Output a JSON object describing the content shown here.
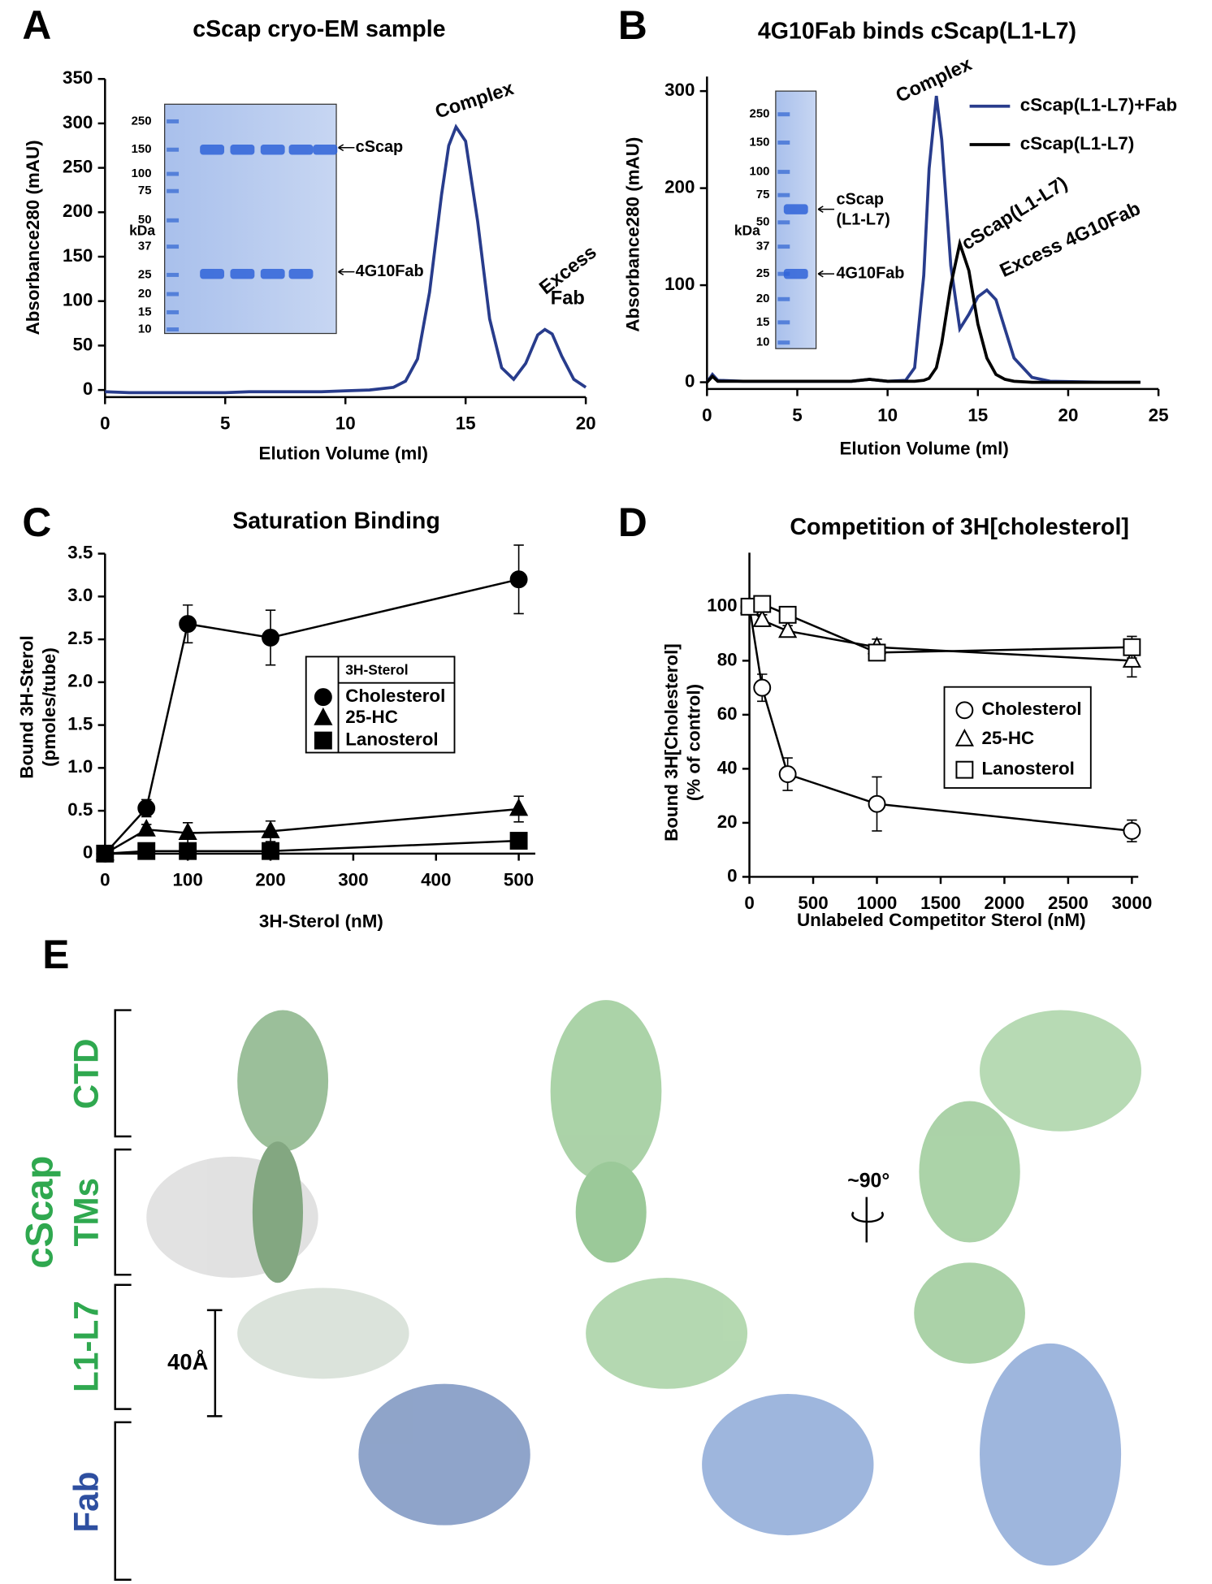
{
  "chart_data": [
    {
      "type": "line",
      "panel": "A",
      "title": "cScap cryo-EM sample",
      "x_label": "Elution Volume (ml)",
      "y_label": [
        "Absorbance280 (mAU)"
      ],
      "xlim": [
        0,
        20
      ],
      "ylim": [
        -8,
        350
      ],
      "xticks": [
        0,
        5,
        10,
        15,
        20
      ],
      "yticks": [
        0,
        50,
        100,
        150,
        200,
        250,
        300,
        350
      ],
      "x": [
        0,
        1,
        2,
        3,
        4,
        5,
        6,
        7,
        8,
        9,
        10,
        11,
        12,
        12.5,
        13,
        13.5,
        14,
        14.3,
        14.6,
        15,
        15.5,
        16,
        16.5,
        17,
        17.5,
        18,
        18.3,
        18.6,
        19,
        19.5,
        20
      ],
      "series": [
        {
          "color": "#283c8c",
          "values": [
            -2,
            -3,
            -3,
            -3,
            -3,
            -3,
            -2,
            -2,
            -2,
            -2,
            -1,
            0,
            3,
            10,
            35,
            110,
            220,
            275,
            296,
            280,
            190,
            80,
            25,
            12,
            30,
            62,
            68,
            63,
            38,
            12,
            3
          ]
        }
      ],
      "annotations": [
        "Complex",
        "Excess",
        "Fab"
      ],
      "gel": {
        "unit": "kDa",
        "markers": [
          "250",
          "150",
          "100",
          "75",
          "50",
          "37",
          "25",
          "20",
          "15",
          "10"
        ],
        "bands": [
          "cScap",
          "4G10Fab"
        ]
      }
    },
    {
      "type": "line",
      "panel": "B",
      "title": "4G10Fab binds cScap(L1-L7)",
      "x_label": "Elution Volume (ml)",
      "y_label": [
        "Absorbance280 (mAU)"
      ],
      "xlim": [
        0,
        25
      ],
      "ylim": [
        -7,
        315
      ],
      "xticks": [
        0,
        5,
        10,
        15,
        20,
        25
      ],
      "yticks": [
        0,
        100,
        200,
        300
      ],
      "legend": "top-right",
      "x": [
        0,
        0.3,
        0.6,
        2,
        5,
        8,
        9,
        10,
        11,
        11.5,
        12,
        12.3,
        12.7,
        13,
        13.5,
        14,
        14.5,
        15,
        15.5,
        16,
        16.5,
        17,
        18,
        19,
        22,
        24
      ],
      "series": [
        {
          "name": "cScap(L1-L7)+Fab",
          "color": "#283c8c",
          "values": [
            0,
            8,
            2,
            1,
            1,
            1,
            3,
            1,
            2,
            15,
            110,
            220,
            295,
            250,
            120,
            55,
            70,
            88,
            95,
            85,
            55,
            25,
            5,
            1,
            0,
            0
          ]
        },
        {
          "name": "cScap(L1-L7)",
          "color": "#000000",
          "values": [
            0,
            6,
            1,
            1,
            1,
            1,
            3,
            1,
            1,
            1,
            2,
            4,
            15,
            40,
            100,
            143,
            115,
            60,
            25,
            8,
            3,
            1,
            0,
            0,
            0,
            0
          ]
        }
      ],
      "annotations": [
        "Complex",
        "cScap(L1-L7)",
        "Excess 4G10Fab"
      ],
      "gel": {
        "unit": "kDa",
        "markers": [
          "250",
          "150",
          "100",
          "75",
          "50",
          "37",
          "25",
          "20",
          "15",
          "10"
        ],
        "bands": [
          "cScap",
          "(L1-L7)",
          "4G10Fab"
        ]
      }
    },
    {
      "type": "line",
      "panel": "C",
      "title": "Saturation Binding",
      "x_label": "3H-Sterol (nM)",
      "y_label": [
        "Bound 3H-Sterol",
        "(pmoles/tube)"
      ],
      "xlim": [
        0,
        520
      ],
      "ylim": [
        0,
        3.5
      ],
      "xticks": [
        0,
        100,
        200,
        300,
        400,
        500
      ],
      "yticks": [
        0,
        0.5,
        {
          "value": 1,
          "label": "1.0"
        },
        1.5,
        {
          "value": 2,
          "label": "2.0"
        },
        2.5,
        {
          "value": 3,
          "label": "3.0"
        },
        3.5
      ],
      "legend_title": "3H-Sterol",
      "legend": "center",
      "x": [
        0,
        50,
        100,
        200,
        500
      ],
      "series": [
        {
          "name": "Cholesterol",
          "color": "#000000",
          "marker": "circle",
          "filled": true,
          "values": [
            0,
            0.53,
            2.68,
            2.52,
            3.2
          ],
          "errors": [
            0,
            0.1,
            0.22,
            0.32,
            0.4
          ]
        },
        {
          "name": "25-HC",
          "color": "#000000",
          "marker": "triangle",
          "filled": true,
          "values": [
            0,
            0.28,
            0.24,
            0.26,
            0.52
          ],
          "errors": [
            0,
            0.06,
            0.12,
            0.12,
            0.15
          ]
        },
        {
          "name": "Lanosterol",
          "color": "#000000",
          "marker": "square",
          "filled": true,
          "values": [
            0,
            0.03,
            0.03,
            0.03,
            0.15
          ],
          "errors": [
            0,
            0,
            0,
            0,
            0
          ]
        }
      ]
    },
    {
      "type": "line",
      "panel": "D",
      "title": "Competition of 3H[cholesterol]",
      "x_label": "Unlabeled Competitor Sterol (nM)",
      "y_label": [
        "Bound 3H[Cholesterol]",
        "(% of control)"
      ],
      "xlim": [
        0,
        3050
      ],
      "ylim": [
        0,
        120
      ],
      "xticks": [
        0,
        500,
        1000,
        1500,
        2000,
        2500,
        3000
      ],
      "yticks": [
        0,
        20,
        40,
        60,
        80,
        100
      ],
      "legend": "center-right",
      "x": [
        0,
        100,
        300,
        1000,
        3000
      ],
      "series": [
        {
          "name": "Cholesterol",
          "color": "#000000",
          "marker": "circle",
          "filled": false,
          "values": [
            100,
            70,
            38,
            27,
            17
          ],
          "errors": [
            0,
            5,
            6,
            10,
            4
          ]
        },
        {
          "name": "25-HC",
          "color": "#000000",
          "marker": "triangle",
          "filled": false,
          "values": [
            100,
            95,
            91,
            85,
            80
          ],
          "errors": [
            0,
            2,
            2,
            3,
            6
          ]
        },
        {
          "name": "Lanosterol",
          "color": "#000000",
          "marker": "square",
          "filled": false,
          "values": [
            100,
            101,
            97,
            83,
            85
          ],
          "errors": [
            0,
            2,
            2,
            2,
            4
          ]
        }
      ]
    }
  ],
  "panel_e": {
    "label": "E",
    "protein": "cScap",
    "regions": [
      "CTD",
      "TMs",
      "L1-L7",
      "Fab"
    ],
    "scale": "40Å",
    "rotation": "~90°"
  }
}
